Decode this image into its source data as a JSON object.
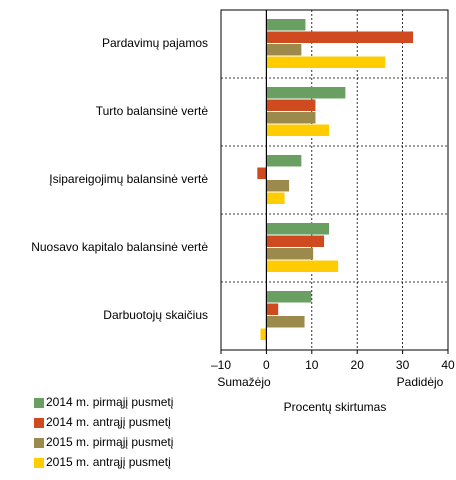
{
  "chart_data": {
    "type": "hbar",
    "categories": [
      "Pardavimų pajamos",
      "Turto balansinė vertė",
      "Įsipareigojimų balansinė vertė",
      "Nuosavo kapitalo balansinė vertė",
      "Darbuotojų skaičius"
    ],
    "series": [
      {
        "name": "2014 m. pirmąjį pusmetį",
        "color": "#6a9f62",
        "values": [
          8.6,
          17.4,
          7.7,
          13.8,
          9.9
        ]
      },
      {
        "name": "2014 m. antrąjį pusmetį",
        "color": "#cf4a1f",
        "values": [
          32.3,
          10.8,
          -2,
          12.7,
          2.6
        ]
      },
      {
        "name": "2015 m. pirmąjį pusmetį",
        "color": "#9c8a4c",
        "values": [
          7.7,
          10.8,
          5,
          10.3,
          8.4
        ]
      },
      {
        "name": "2015 m. antrąjį pusmetį",
        "color": "#ffcc00",
        "values": [
          26.2,
          13.8,
          4,
          15.8,
          -1.3
        ]
      }
    ],
    "xlim": [
      -10,
      40
    ],
    "xticks": [
      {
        "value": -10,
        "label": "–10"
      },
      0,
      10,
      20,
      30,
      40
    ],
    "xlabel": "Procentų skirtumas",
    "annotations": [
      "Sumažėjo",
      "Padidėjo"
    ],
    "grid": true,
    "legend": "bottom-left"
  }
}
